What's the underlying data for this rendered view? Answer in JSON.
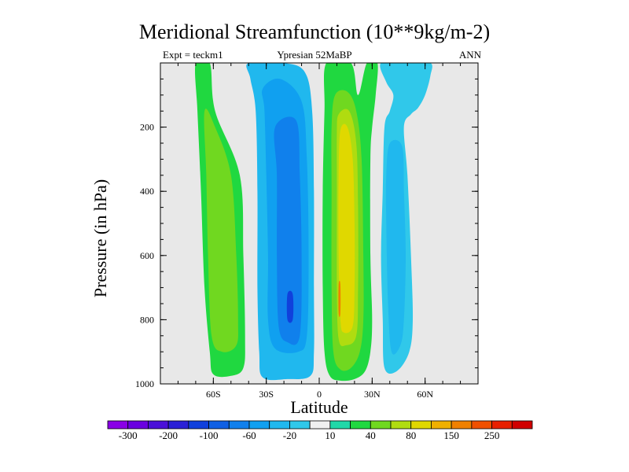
{
  "chart_data": {
    "type": "contour",
    "title": "Meridional Streamfunction (10**9kg/m-2)",
    "left_label": "Expt = teckm1",
    "center_label": "Ypresian  52MaBP",
    "right_label": "ANN",
    "xlabel": "Latitude",
    "ylabel": "Pressure (in hPa)",
    "xlim": [
      -90,
      90
    ],
    "ylim": [
      1000,
      0
    ],
    "x_ticks": [
      {
        "value": -60,
        "label": "60S"
      },
      {
        "value": -30,
        "label": "30S"
      },
      {
        "value": 0,
        "label": "0"
      },
      {
        "value": 30,
        "label": "30N"
      },
      {
        "value": 60,
        "label": "60N"
      }
    ],
    "y_ticks": [
      {
        "value": 200,
        "label": "200"
      },
      {
        "value": 400,
        "label": "400"
      },
      {
        "value": 600,
        "label": "600"
      },
      {
        "value": 800,
        "label": "800"
      },
      {
        "value": 1000,
        "label": "1000"
      }
    ],
    "colorbar": {
      "levels": [
        -300,
        -250,
        -200,
        -150,
        -100,
        -80,
        -60,
        -40,
        -20,
        -10,
        10,
        20,
        40,
        60,
        80,
        100,
        150,
        200,
        250,
        300
      ],
      "colors": [
        "#8a00e6",
        "#6a00e0",
        "#4a10d8",
        "#2a20d6",
        "#1040dc",
        "#1060e4",
        "#1080ec",
        "#10a0f0",
        "#20b8ee",
        "#30c8ea",
        "#f0f0f0",
        "#20d8a8",
        "#20d840",
        "#70d820",
        "#b0dc10",
        "#e0d800",
        "#f0b000",
        "#f08000",
        "#f05000",
        "#e82000",
        "#d00000"
      ],
      "labels": [
        {
          "after_box": 1,
          "text": "-300"
        },
        {
          "after_box": 3,
          "text": "-200"
        },
        {
          "after_box": 5,
          "text": "-100"
        },
        {
          "after_box": 7,
          "text": "-60"
        },
        {
          "after_box": 9,
          "text": "-20"
        },
        {
          "after_box": 11,
          "text": "10"
        },
        {
          "after_box": 13,
          "text": "40"
        },
        {
          "after_box": 15,
          "text": "80"
        },
        {
          "after_box": 17,
          "text": "150"
        },
        {
          "after_box": 19,
          "text": "250"
        }
      ]
    },
    "cells": [
      {
        "name": "cell-60s",
        "value": 30,
        "outline": [
          [
            -70,
            0
          ],
          [
            -62,
            0
          ],
          [
            -59,
            150
          ],
          [
            -45,
            350
          ],
          [
            -43,
            600
          ],
          [
            -42,
            850
          ],
          [
            -43,
            950
          ],
          [
            -50,
            975
          ],
          [
            -60,
            970
          ],
          [
            -62,
            900
          ],
          [
            -65,
            700
          ],
          [
            -67,
            400
          ],
          [
            -69,
            150
          ]
        ]
      },
      {
        "name": "cell-60s-core",
        "value": 40,
        "outline": [
          [
            -65,
            150
          ],
          [
            -59,
            200
          ],
          [
            -50,
            350
          ],
          [
            -47,
            600
          ],
          [
            -46,
            800
          ],
          [
            -47,
            880
          ],
          [
            -55,
            900
          ],
          [
            -61,
            850
          ],
          [
            -63,
            600
          ],
          [
            -64,
            350
          ]
        ]
      },
      {
        "name": "cell-30s",
        "value": -30,
        "outline": [
          [
            -40,
            0
          ],
          [
            -20,
            0
          ],
          [
            -8,
            30
          ],
          [
            -4,
            150
          ],
          [
            -3,
            400
          ],
          [
            -3,
            700
          ],
          [
            -3,
            900
          ],
          [
            -5,
            975
          ],
          [
            -18,
            985
          ],
          [
            -32,
            980
          ],
          [
            -34,
            900
          ],
          [
            -35,
            700
          ],
          [
            -35,
            400
          ],
          [
            -36,
            150
          ],
          [
            -39,
            50
          ]
        ]
      },
      {
        "name": "cell-30s-mid",
        "value": -50,
        "outline": [
          [
            -32,
            80
          ],
          [
            -22,
            50
          ],
          [
            -10,
            120
          ],
          [
            -7,
            300
          ],
          [
            -6,
            600
          ],
          [
            -7,
            850
          ],
          [
            -12,
            900
          ],
          [
            -25,
            890
          ],
          [
            -29,
            800
          ],
          [
            -29,
            600
          ],
          [
            -30,
            350
          ],
          [
            -31,
            150
          ]
        ]
      },
      {
        "name": "cell-30s-core",
        "value": -70,
        "outline": [
          [
            -25,
            200
          ],
          [
            -13,
            180
          ],
          [
            -11,
            350
          ],
          [
            -10,
            600
          ],
          [
            -11,
            850
          ],
          [
            -18,
            870
          ],
          [
            -23,
            820
          ],
          [
            -24,
            600
          ],
          [
            -24,
            350
          ]
        ]
      },
      {
        "name": "cell-30s-max",
        "value": -120,
        "outline": [
          [
            -18,
            720
          ],
          [
            -15,
            720
          ],
          [
            -15,
            800
          ],
          [
            -18,
            800
          ]
        ]
      },
      {
        "name": "cell-eq",
        "value": 30,
        "outline": [
          [
            4,
            0
          ],
          [
            18,
            0
          ],
          [
            22,
            100
          ],
          [
            27,
            0
          ],
          [
            33,
            0
          ],
          [
            32,
            100
          ],
          [
            30,
            200
          ],
          [
            29,
            300
          ],
          [
            29,
            600
          ],
          [
            30,
            800
          ],
          [
            29,
            900
          ],
          [
            26,
            960
          ],
          [
            20,
            985
          ],
          [
            12,
            990
          ],
          [
            6,
            975
          ],
          [
            3,
            900
          ],
          [
            2,
            700
          ],
          [
            2,
            400
          ],
          [
            3,
            150
          ]
        ]
      },
      {
        "name": "cell-eq-mid",
        "value": 50,
        "outline": [
          [
            9,
            100
          ],
          [
            16,
            90
          ],
          [
            21,
            150
          ],
          [
            24,
            300
          ],
          [
            25,
            600
          ],
          [
            25,
            800
          ],
          [
            23,
            900
          ],
          [
            18,
            950
          ],
          [
            12,
            955
          ],
          [
            8,
            900
          ],
          [
            7,
            700
          ],
          [
            7,
            400
          ],
          [
            7,
            200
          ]
        ]
      },
      {
        "name": "cell-eq-inner",
        "value": 70,
        "outline": [
          [
            11,
            160
          ],
          [
            17,
            150
          ],
          [
            21,
            250
          ],
          [
            22,
            450
          ],
          [
            22,
            700
          ],
          [
            21,
            850
          ],
          [
            15,
            880
          ],
          [
            11,
            860
          ],
          [
            10,
            700
          ],
          [
            10,
            400
          ],
          [
            10,
            220
          ]
        ]
      },
      {
        "name": "cell-eq-core",
        "value": 90,
        "outline": [
          [
            12,
            210
          ],
          [
            16,
            200
          ],
          [
            19,
            300
          ],
          [
            20,
            500
          ],
          [
            20,
            700
          ],
          [
            19,
            820
          ],
          [
            14,
            840
          ],
          [
            12,
            800
          ],
          [
            11,
            600
          ],
          [
            11,
            350
          ]
        ]
      },
      {
        "name": "cell-eq-max",
        "value": 160,
        "outline": [
          [
            11,
            690
          ],
          [
            12,
            690
          ],
          [
            12,
            780
          ],
          [
            11,
            780
          ]
        ]
      },
      {
        "name": "cell-nh-outer",
        "value": -20,
        "outline": [
          [
            35,
            0
          ],
          [
            50,
            0
          ],
          [
            63,
            0
          ],
          [
            63,
            40
          ],
          [
            60,
            100
          ],
          [
            56,
            140
          ],
          [
            52,
            160
          ],
          [
            48,
            200
          ],
          [
            50,
            350
          ],
          [
            52,
            600
          ],
          [
            53,
            800
          ],
          [
            51,
            900
          ],
          [
            44,
            960
          ],
          [
            37,
            950
          ],
          [
            36,
            800
          ],
          [
            35,
            600
          ],
          [
            36,
            400
          ],
          [
            37,
            200
          ],
          [
            40,
            150
          ],
          [
            42,
            100
          ],
          [
            38,
            60
          ]
        ]
      },
      {
        "name": "cell-nh-inner",
        "value": -40,
        "outline": [
          [
            40,
            250
          ],
          [
            47,
            260
          ],
          [
            48,
            400
          ],
          [
            49,
            600
          ],
          [
            48,
            800
          ],
          [
            46,
            880
          ],
          [
            41,
            900
          ],
          [
            39,
            750
          ],
          [
            38,
            500
          ],
          [
            38,
            350
          ]
        ]
      }
    ]
  }
}
